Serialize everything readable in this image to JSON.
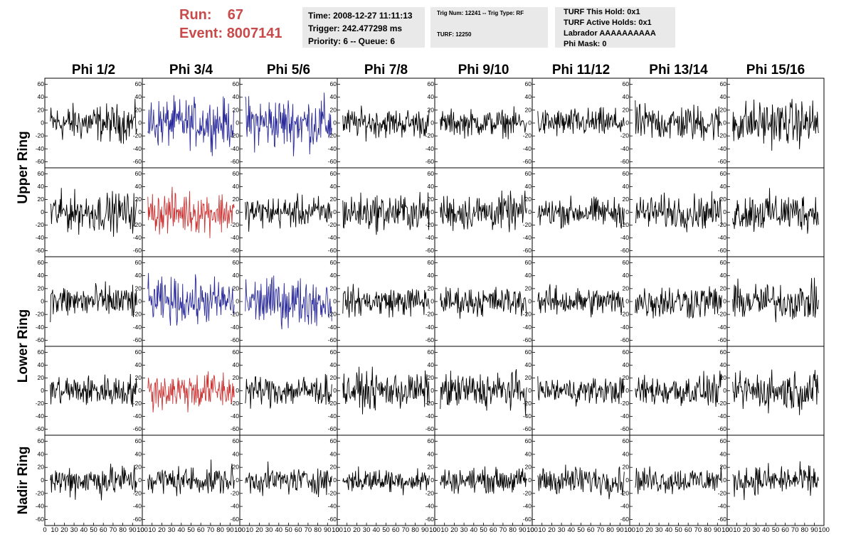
{
  "header": {
    "run_label": "Run:",
    "run_value": "67",
    "event_label": "Event:",
    "event_value": "8007141",
    "time": "Time: 2008-12-27 11:11:13",
    "trigger": "Trigger: 242.477298 ms",
    "priority": "Priority: 6 -- Queue: 6",
    "trig_num": "Trig Num: 12241 -- Trig Type: RF",
    "turf": "TURF: 12250",
    "turf_this_hold": "TURF This Hold: 0x1",
    "turf_active_holds": "TURF Active Holds: 0x1",
    "labrador": "Labrador AAAAAAAAAA",
    "phi_mask": "Phi Mask: 0"
  },
  "chart_data": {
    "type": "line",
    "columns": [
      "Phi 1/2",
      "Phi 3/4",
      "Phi 5/6",
      "Phi 7/8",
      "Phi 9/10",
      "Phi 11/12",
      "Phi 13/14",
      "Phi 15/16"
    ],
    "ring_labels": [
      "Upper Ring",
      "Lower Ring",
      "Nadir Ring"
    ],
    "ylim": [
      -65,
      65
    ],
    "yticks": [
      -60,
      -40,
      -20,
      0,
      20,
      40,
      60
    ],
    "xlim": [
      0,
      100
    ],
    "xticks": [
      0,
      10,
      20,
      30,
      40,
      50,
      60,
      70,
      80,
      90,
      100
    ],
    "xtick_labels": [
      "0",
      "10",
      "20",
      "30",
      "40",
      "50",
      "60",
      "70",
      "80",
      "90",
      "100"
    ],
    "colors": {
      "default": "#000000",
      "blue": "#2a2a9a",
      "red": "#cc3333"
    },
    "panel_rows": [
      {
        "amplitudes": [
          14,
          18,
          20,
          11,
          10,
          11,
          14,
          17
        ],
        "colors": [
          "default",
          "blue",
          "blue",
          "default",
          "default",
          "default",
          "default",
          "default"
        ]
      },
      {
        "amplitudes": [
          15,
          16,
          12,
          14,
          14,
          11,
          13,
          15
        ],
        "colors": [
          "default",
          "red",
          "default",
          "default",
          "default",
          "default",
          "default",
          "default"
        ]
      },
      {
        "amplitudes": [
          13,
          17,
          18,
          11,
          11,
          11,
          13,
          14
        ],
        "colors": [
          "default",
          "blue",
          "blue",
          "default",
          "default",
          "default",
          "default",
          "default"
        ]
      },
      {
        "amplitudes": [
          12,
          15,
          12,
          14,
          14,
          10,
          12,
          15
        ],
        "colors": [
          "default",
          "red",
          "default",
          "default",
          "default",
          "default",
          "default",
          "default"
        ]
      },
      {
        "amplitudes": [
          12,
          11,
          10,
          9,
          9,
          11,
          10,
          11
        ],
        "colors": [
          "default",
          "default",
          "default",
          "default",
          "default",
          "default",
          "default",
          "default"
        ]
      }
    ]
  }
}
